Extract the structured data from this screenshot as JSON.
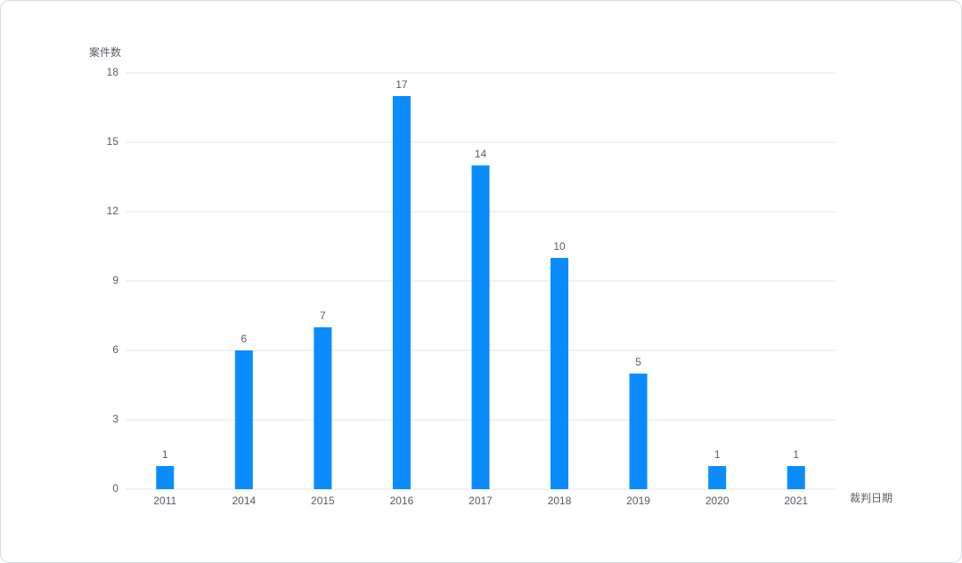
{
  "chart_data": {
    "type": "bar",
    "y_label": "案件数",
    "x_label": "裁判日期",
    "categories": [
      "2011",
      "2014",
      "2015",
      "2016",
      "2017",
      "2018",
      "2019",
      "2020",
      "2021"
    ],
    "values": [
      1,
      6,
      7,
      17,
      14,
      10,
      5,
      1,
      1
    ],
    "color": "#0a8cff",
    "ylim": [
      0,
      18
    ],
    "yticks": [
      0,
      3,
      6,
      9,
      12,
      15,
      18
    ],
    "grid": true
  }
}
